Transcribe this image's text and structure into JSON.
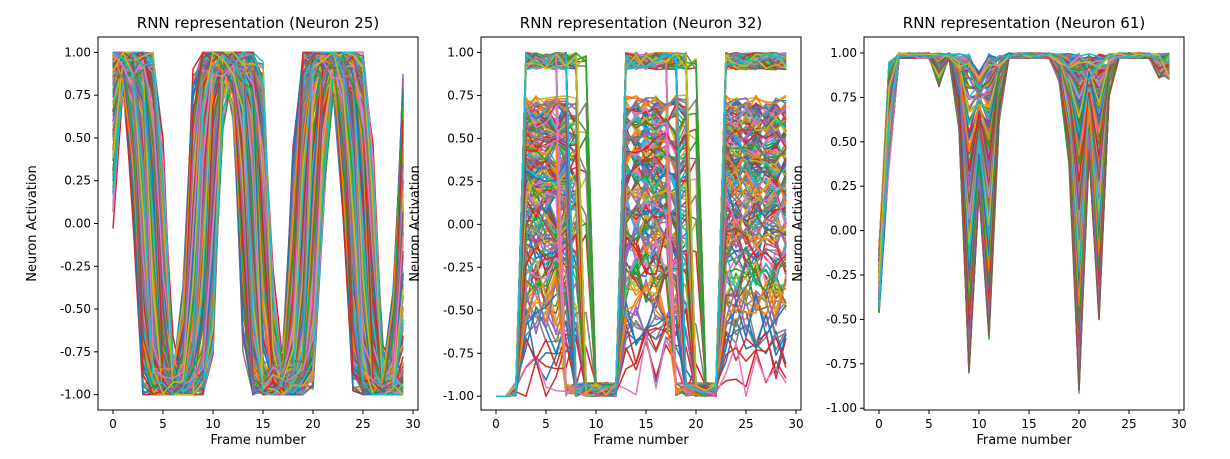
{
  "chart_data": [
    {
      "type": "line",
      "title": "RNN representation (Neuron 25)",
      "xlabel": "Frame number",
      "ylabel": "Neuron Activation",
      "xlim": [
        -1.5,
        30.5
      ],
      "ylim": [
        -1.09,
        1.09
      ],
      "xticks": [
        "0",
        "5",
        "10",
        "15",
        "20",
        "25",
        "30"
      ],
      "yticks": [
        "-1.00",
        "-0.75",
        "-0.50",
        "-0.25",
        "0.00",
        "0.25",
        "0.50",
        "0.75",
        "1.00"
      ],
      "grid": false,
      "pattern": "neuron25"
    },
    {
      "type": "line",
      "title": "RNN representation (Neuron 32)",
      "xlabel": "Frame number",
      "ylabel": "Neuron Activation",
      "xlim": [
        -1.5,
        30.5
      ],
      "ylim": [
        -1.08,
        1.09
      ],
      "xticks": [
        "0",
        "5",
        "10",
        "15",
        "20",
        "25",
        "30"
      ],
      "yticks": [
        "-1.00",
        "-0.75",
        "-0.50",
        "-0.25",
        "0.00",
        "0.25",
        "0.50",
        "0.75",
        "1.00"
      ],
      "grid": false,
      "pattern": "neuron32"
    },
    {
      "type": "line",
      "title": "RNN representation (Neuron 61)",
      "xlabel": "Frame number",
      "ylabel": "Neuron Activation",
      "xlim": [
        -1.5,
        30.5
      ],
      "ylim": [
        -1.01,
        1.09
      ],
      "xticks": [
        "0",
        "5",
        "10",
        "15",
        "20",
        "25",
        "30"
      ],
      "yticks": [
        "-1.00",
        "-0.75",
        "-0.50",
        "-0.25",
        "0.00",
        "0.25",
        "0.50",
        "0.75",
        "1.00"
      ],
      "grid": false,
      "pattern": "neuron61"
    }
  ],
  "colors": [
    "#1f77b4",
    "#ff7f0e",
    "#2ca02c",
    "#d62728",
    "#9467bd",
    "#8c564b",
    "#e377c2",
    "#7f7f7f",
    "#bcbd22",
    "#17becf"
  ]
}
